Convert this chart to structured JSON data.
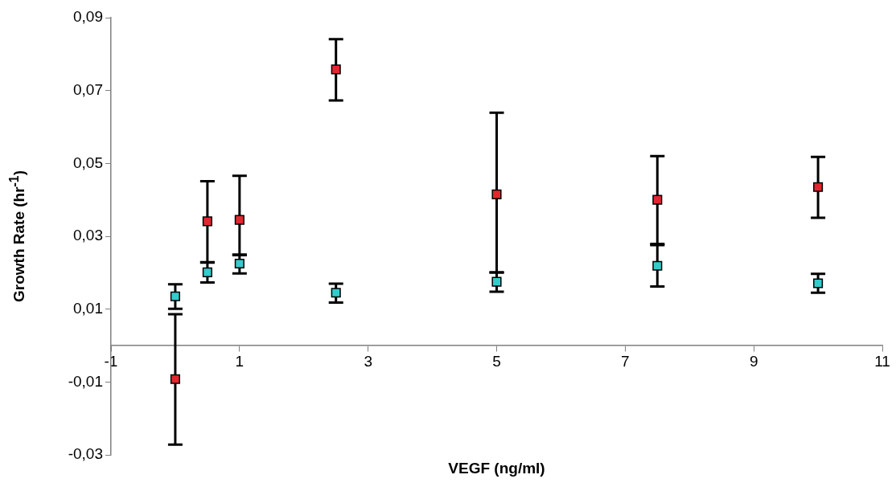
{
  "chart_data": {
    "type": "scatter",
    "xlabel": "VEGF (ng/ml)",
    "ylabel": "Growth Rate (hr$^{-1}$)",
    "x": [
      0,
      0.5,
      1,
      2.5,
      5,
      7.5,
      10
    ],
    "series": [
      {
        "color": "#e0282e",
        "values": [
          -0.0092,
          0.0341,
          0.0345,
          0.0758,
          0.0415,
          0.04,
          0.0435
        ],
        "errors": [
          [
            -0.0272,
            0.0086
          ],
          [
            0.0228,
            0.0451
          ],
          [
            0.0248,
            0.0466
          ],
          [
            0.0673,
            0.0841
          ],
          [
            0.0201,
            0.0639
          ],
          [
            0.0276,
            0.052
          ],
          [
            0.0351,
            0.0518
          ]
        ]
      },
      {
        "color": "#33cccc",
        "values": [
          0.0135,
          0.0201,
          0.0225,
          0.0145,
          0.0175,
          0.0219,
          0.0171
        ],
        "errors": [
          [
            0.0101,
            0.0168
          ],
          [
            0.0173,
            0.0229
          ],
          [
            0.0198,
            0.025
          ],
          [
            0.0118,
            0.017
          ],
          [
            0.0148,
            0.0201
          ],
          [
            0.0162,
            0.0279
          ],
          [
            0.0145,
            0.0197
          ]
        ]
      }
    ],
    "xlim": [
      -1,
      11
    ],
    "xticks": [
      -1,
      1,
      3,
      5,
      7,
      9,
      11
    ],
    "ylim": [
      -0.03,
      0.09
    ],
    "yticks": [
      {
        "value": -0.03,
        "label": "-0,03"
      },
      {
        "value": -0.01,
        "label": "-0,01"
      },
      {
        "value": 0.01,
        "label": "0,01"
      },
      {
        "value": 0.03,
        "label": "0,03"
      },
      {
        "value": 0.05,
        "label": "0,05"
      },
      {
        "value": 0.07,
        "label": "0,07"
      },
      {
        "value": 0.09,
        "label": "0,09"
      }
    ],
    "grid": false,
    "legend": false,
    "marker": "square"
  }
}
